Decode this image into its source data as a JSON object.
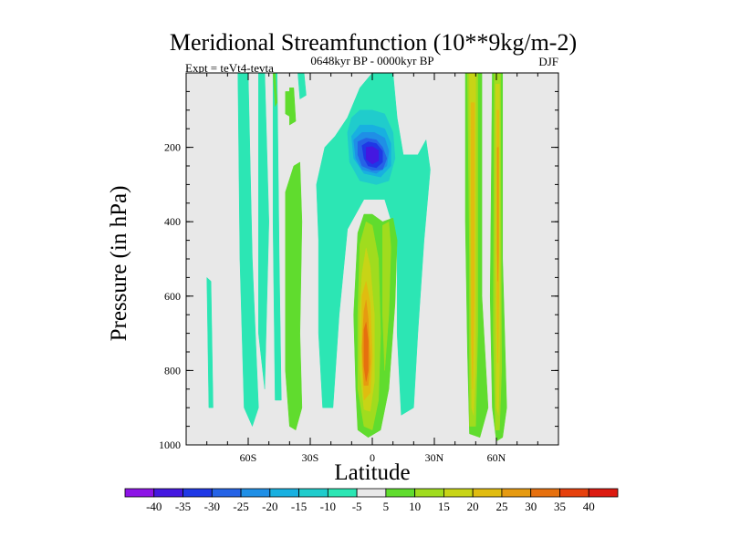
{
  "chart_data": {
    "type": "filled-contour",
    "title": "Meridional Streamfunction (10**9kg/m-2)",
    "subtitle": "0648kyr BP - 0000kyr BP",
    "left_label": "Expt = teVt4-tevta",
    "right_label": "DJF",
    "xlabel": "Latitude",
    "ylabel": "Pressure (in hPa)",
    "xlim": [
      -90,
      90
    ],
    "ylim": [
      1000,
      0
    ],
    "x_ticks": [
      {
        "value": -60,
        "label": "60S"
      },
      {
        "value": -30,
        "label": "30S"
      },
      {
        "value": 0,
        "label": "0"
      },
      {
        "value": 30,
        "label": "30N"
      },
      {
        "value": 60,
        "label": "60N"
      }
    ],
    "y_ticks": [
      {
        "value": 200,
        "label": "200"
      },
      {
        "value": 400,
        "label": "400"
      },
      {
        "value": 600,
        "label": "600"
      },
      {
        "value": 800,
        "label": "800"
      },
      {
        "value": 1000,
        "label": "1000"
      }
    ],
    "background_color": "#e8e8e8",
    "levels": [
      -40,
      -35,
      -30,
      -25,
      -20,
      -15,
      -10,
      -5,
      5,
      10,
      15,
      20,
      25,
      30,
      35,
      40
    ],
    "level_labels": [
      "-40",
      "-35",
      "-30",
      "-25",
      "-20",
      "-15",
      "-10",
      "-5",
      "5",
      "10",
      "15",
      "20",
      "25",
      "30",
      "35",
      "40"
    ],
    "colors": [
      "#8d14e6",
      "#4418e0",
      "#1f38e6",
      "#2563e6",
      "#1f8fe6",
      "#18b0e0",
      "#20cccc",
      "#2ce6b4",
      "#e8e8e8",
      "#60dc2e",
      "#a0dc1e",
      "#c8d416",
      "#e0bc10",
      "#e69a10",
      "#e6700e",
      "#e6400c",
      "#dc1a10"
    ],
    "regions": [
      {
        "level": -5,
        "points": [
          [
            -65,
            0
          ],
          [
            -60,
            0
          ],
          [
            -58,
            500
          ],
          [
            -55,
            900
          ],
          [
            -58,
            950
          ],
          [
            -62,
            900
          ],
          [
            -64,
            500
          ]
        ]
      },
      {
        "level": -5,
        "points": [
          [
            -55,
            0
          ],
          [
            -52,
            0
          ],
          [
            -50,
            400
          ],
          [
            -52,
            850
          ],
          [
            -55,
            700
          ]
        ]
      },
      {
        "level": -5,
        "points": [
          [
            -48,
            0
          ],
          [
            -46,
            0
          ],
          [
            -45,
            500
          ],
          [
            -44,
            880
          ],
          [
            -47,
            880
          ],
          [
            -48,
            400
          ]
        ]
      },
      {
        "level": -5,
        "points": [
          [
            -80,
            550
          ],
          [
            -78,
            560
          ],
          [
            -77,
            900
          ],
          [
            -79,
            900
          ]
        ]
      },
      {
        "level": -5,
        "points": [
          [
            -36,
            0
          ],
          [
            -33,
            0
          ],
          [
            -32,
            60
          ],
          [
            -35,
            70
          ]
        ]
      },
      {
        "level": 5,
        "points": [
          [
            -42,
            50
          ],
          [
            -40,
            50
          ],
          [
            -39,
            120
          ],
          [
            -42,
            110
          ]
        ]
      },
      {
        "level": 5,
        "points": [
          [
            -42,
            320
          ],
          [
            -38,
            250
          ],
          [
            -35,
            240
          ],
          [
            -34,
            400
          ],
          [
            -35,
            700
          ],
          [
            -34,
            900
          ],
          [
            -37,
            960
          ],
          [
            -40,
            950
          ],
          [
            -42,
            800
          ],
          [
            -42,
            500
          ]
        ]
      },
      {
        "level": -5,
        "points": [
          [
            -27,
            300
          ],
          [
            -23,
            200
          ],
          [
            -18,
            170
          ],
          [
            -12,
            120
          ],
          [
            -6,
            40
          ],
          [
            0,
            0
          ],
          [
            10,
            0
          ],
          [
            12,
            120
          ],
          [
            15,
            220
          ],
          [
            22,
            220
          ],
          [
            26,
            180
          ],
          [
            28,
            260
          ],
          [
            25,
            450
          ],
          [
            22,
            700
          ],
          [
            20,
            900
          ],
          [
            14,
            920
          ],
          [
            12,
            700
          ],
          [
            12,
            450
          ],
          [
            6,
            340
          ],
          [
            -4,
            340
          ],
          [
            -12,
            420
          ],
          [
            -16,
            650
          ],
          [
            -19,
            900
          ],
          [
            -24,
            900
          ],
          [
            -26,
            700
          ],
          [
            -26,
            450
          ]
        ]
      },
      {
        "level": -10,
        "points": [
          [
            -12,
            160
          ],
          [
            -10,
            120
          ],
          [
            -6,
            100
          ],
          [
            0,
            100
          ],
          [
            6,
            110
          ],
          [
            10,
            160
          ],
          [
            11,
            230
          ],
          [
            8,
            290
          ],
          [
            2,
            300
          ],
          [
            -6,
            290
          ],
          [
            -11,
            240
          ]
        ]
      },
      {
        "level": -10,
        "points": [
          [
            -5,
            420
          ],
          [
            -3,
            380
          ],
          [
            -1,
            430
          ],
          [
            -1,
            650
          ],
          [
            -3,
            900
          ],
          [
            -6,
            850
          ],
          [
            -6,
            550
          ]
        ]
      },
      {
        "level": -15,
        "points": [
          [
            -10,
            170
          ],
          [
            -6,
            140
          ],
          [
            0,
            140
          ],
          [
            6,
            150
          ],
          [
            9,
            190
          ],
          [
            9,
            250
          ],
          [
            4,
            280
          ],
          [
            -4,
            270
          ],
          [
            -9,
            230
          ]
        ]
      },
      {
        "level": -20,
        "points": [
          [
            -9,
            180
          ],
          [
            -5,
            160
          ],
          [
            1,
            160
          ],
          [
            6,
            175
          ],
          [
            8,
            210
          ],
          [
            7,
            250
          ],
          [
            2,
            270
          ],
          [
            -5,
            260
          ],
          [
            -8,
            230
          ]
        ]
      },
      {
        "level": -25,
        "points": [
          [
            -7,
            185
          ],
          [
            -3,
            175
          ],
          [
            2,
            180
          ],
          [
            5,
            200
          ],
          [
            7,
            230
          ],
          [
            5,
            260
          ],
          [
            0,
            262
          ],
          [
            -5,
            250
          ],
          [
            -7,
            220
          ]
        ]
      },
      {
        "level": -30,
        "points": [
          [
            -5,
            195
          ],
          [
            -2,
            185
          ],
          [
            2,
            190
          ],
          [
            5,
            210
          ],
          [
            5,
            240
          ],
          [
            2,
            255
          ],
          [
            -2,
            250
          ],
          [
            -4,
            230
          ]
        ]
      },
      {
        "level": -35,
        "points": [
          [
            -3,
            200
          ],
          [
            0,
            198
          ],
          [
            3,
            208
          ],
          [
            3,
            236
          ],
          [
            0,
            245
          ],
          [
            -3,
            232
          ]
        ]
      },
      {
        "level": 5,
        "points": [
          [
            -7,
            430
          ],
          [
            -4,
            380
          ],
          [
            0,
            380
          ],
          [
            5,
            400
          ],
          [
            10,
            390
          ],
          [
            12,
            450
          ],
          [
            11,
            620
          ],
          [
            8,
            850
          ],
          [
            4,
            960
          ],
          [
            -2,
            980
          ],
          [
            -7,
            960
          ],
          [
            -8,
            850
          ],
          [
            -9,
            650
          ]
        ]
      },
      {
        "level": 10,
        "points": [
          [
            -6,
            460
          ],
          [
            -3,
            400
          ],
          [
            0,
            410
          ],
          [
            3,
            500
          ],
          [
            4,
            700
          ],
          [
            3,
            880
          ],
          [
            0,
            960
          ],
          [
            -4,
            950
          ],
          [
            -7,
            850
          ],
          [
            -7,
            650
          ]
        ]
      },
      {
        "level": 10,
        "points": [
          [
            5,
            410
          ],
          [
            8,
            400
          ],
          [
            9,
            470
          ],
          [
            8,
            650
          ],
          [
            6,
            800
          ],
          [
            5,
            650
          ]
        ]
      },
      {
        "level": 15,
        "points": [
          [
            -5,
            540
          ],
          [
            -3,
            470
          ],
          [
            -1,
            520
          ],
          [
            1,
            650
          ],
          [
            1,
            830
          ],
          [
            -1,
            910
          ],
          [
            -4,
            905
          ],
          [
            -6,
            800
          ],
          [
            -6,
            640
          ]
        ]
      },
      {
        "level": 20,
        "points": [
          [
            -5,
            600
          ],
          [
            -3,
            560
          ],
          [
            -1,
            620
          ],
          [
            0,
            760
          ],
          [
            -1,
            860
          ],
          [
            -4,
            880
          ],
          [
            -5,
            780
          ]
        ]
      },
      {
        "level": 25,
        "points": [
          [
            -4,
            640
          ],
          [
            -3,
            610
          ],
          [
            -2,
            660
          ],
          [
            -1,
            780
          ],
          [
            -2,
            840
          ],
          [
            -4,
            840
          ],
          [
            -5,
            740
          ]
        ]
      },
      {
        "level": 30,
        "points": [
          [
            -4,
            690
          ],
          [
            -3,
            670
          ],
          [
            -2,
            720
          ],
          [
            -2,
            800
          ],
          [
            -3,
            830
          ],
          [
            -4,
            790
          ]
        ]
      },
      {
        "level": 5,
        "points": [
          [
            45,
            0
          ],
          [
            53,
            0
          ],
          [
            53,
            600
          ],
          [
            56,
            900
          ],
          [
            52,
            980
          ],
          [
            47,
            970
          ],
          [
            46,
            750
          ],
          [
            45,
            400
          ]
        ]
      },
      {
        "level": 10,
        "points": [
          [
            46,
            0
          ],
          [
            51,
            0
          ],
          [
            51,
            700
          ],
          [
            50,
            950
          ],
          [
            47,
            950
          ],
          [
            47,
            500
          ]
        ]
      },
      {
        "level": 15,
        "points": [
          [
            47,
            0
          ],
          [
            50,
            0
          ],
          [
            50,
            800
          ],
          [
            49,
            920
          ],
          [
            48,
            900
          ],
          [
            47.5,
            500
          ]
        ]
      },
      {
        "level": 20,
        "points": [
          [
            47.7,
            80
          ],
          [
            49.4,
            80
          ],
          [
            49.3,
            600
          ],
          [
            48.5,
            850
          ],
          [
            47.9,
            700
          ]
        ]
      },
      {
        "level": 5,
        "points": [
          [
            58,
            0
          ],
          [
            63,
            0
          ],
          [
            63,
            500
          ],
          [
            65,
            900
          ],
          [
            63,
            980
          ],
          [
            60,
            990
          ],
          [
            58,
            900
          ],
          [
            57,
            600
          ]
        ]
      },
      {
        "level": 10,
        "points": [
          [
            59,
            0
          ],
          [
            62,
            0
          ],
          [
            62.5,
            800
          ],
          [
            61.5,
            960
          ],
          [
            59.5,
            960
          ],
          [
            58.5,
            700
          ]
        ]
      },
      {
        "level": 15,
        "points": [
          [
            59.7,
            30
          ],
          [
            61.5,
            30
          ],
          [
            61.8,
            700
          ],
          [
            61,
            920
          ],
          [
            60,
            900
          ],
          [
            59.5,
            500
          ]
        ]
      },
      {
        "level": 20,
        "points": [
          [
            60.2,
            100
          ],
          [
            61.2,
            100
          ],
          [
            61.2,
            600
          ],
          [
            60.7,
            780
          ],
          [
            60.2,
            600
          ]
        ]
      },
      {
        "level": 25,
        "points": [
          [
            60.4,
            200
          ],
          [
            61,
            200
          ],
          [
            61,
            480
          ],
          [
            60.7,
            560
          ],
          [
            60.4,
            480
          ]
        ]
      },
      {
        "level": 5,
        "points": [
          [
            -48,
            0
          ],
          [
            -47,
            0
          ],
          [
            -46,
            80
          ],
          [
            -47,
            90
          ]
        ]
      },
      {
        "level": 5,
        "points": [
          [
            -40,
            40
          ],
          [
            -38,
            40
          ],
          [
            -37,
            130
          ],
          [
            -40,
            140
          ]
        ]
      }
    ]
  }
}
